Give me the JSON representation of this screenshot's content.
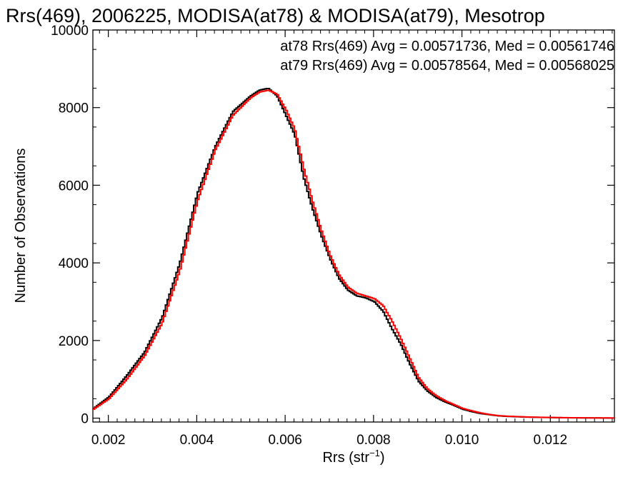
{
  "chart_data": {
    "type": "line",
    "title": "Rrs(469), 2006225, MODISA(at78) & MODISA(at79), Mesotrop",
    "xlabel": "Rrs (str",
    "xlabel_sup": "−1",
    "xlabel_close": ")",
    "ylabel": "Number of Observations",
    "xlim": [
      0.00165,
      0.01345
    ],
    "ylim": [
      -100,
      10000
    ],
    "xticks": [
      0.002,
      0.004,
      0.006,
      0.008,
      0.01,
      0.012
    ],
    "xtick_labels": [
      "0.002",
      "0.004",
      "0.006",
      "0.008",
      "0.010",
      "0.012"
    ],
    "yticks": [
      0,
      2000,
      4000,
      6000,
      8000,
      10000
    ],
    "ytick_labels": [
      "0",
      "2000",
      "4000",
      "6000",
      "8000",
      "10000"
    ],
    "grid": false,
    "legend_placement": "top-right",
    "series": [
      {
        "name": "at78",
        "color": "#000000",
        "legend": "at78 Rrs(469) Avg = 0.00571736, Med = 0.00561746",
        "x": [
          0.00165,
          0.002,
          0.0024,
          0.0028,
          0.0032,
          0.0036,
          0.004,
          0.0044,
          0.0048,
          0.0052,
          0.0054,
          0.0056,
          0.0058,
          0.006,
          0.0062,
          0.0064,
          0.0066,
          0.0068,
          0.007,
          0.0072,
          0.0074,
          0.0076,
          0.0078,
          0.008,
          0.0082,
          0.0084,
          0.0086,
          0.0088,
          0.009,
          0.0092,
          0.0094,
          0.0096,
          0.0098,
          0.01,
          0.0102,
          0.0104,
          0.0106,
          0.0108,
          0.011,
          0.0115,
          0.012,
          0.0125,
          0.013,
          0.01345
        ],
        "values": [
          250,
          550,
          1100,
          1700,
          2600,
          4000,
          5800,
          7000,
          7900,
          8300,
          8450,
          8500,
          8300,
          7800,
          7300,
          6200,
          5400,
          4700,
          4100,
          3600,
          3300,
          3150,
          3100,
          3000,
          2750,
          2300,
          1900,
          1400,
          950,
          700,
          530,
          420,
          330,
          230,
          170,
          120,
          90,
          60,
          45,
          25,
          15,
          8,
          5,
          3
        ]
      },
      {
        "name": "at79",
        "color": "#ff0000",
        "legend": "at79 Rrs(469) Avg = 0.00578564, Med = 0.00568025",
        "x": [
          0.00165,
          0.002,
          0.0024,
          0.0028,
          0.0032,
          0.0036,
          0.004,
          0.0044,
          0.0048,
          0.0052,
          0.0054,
          0.0056,
          0.0058,
          0.006,
          0.0062,
          0.0064,
          0.0066,
          0.0068,
          0.007,
          0.0072,
          0.0074,
          0.0076,
          0.0078,
          0.008,
          0.0082,
          0.0084,
          0.0086,
          0.0088,
          0.009,
          0.0092,
          0.0094,
          0.0096,
          0.0098,
          0.01,
          0.0102,
          0.0104,
          0.0106,
          0.0108,
          0.011,
          0.0115,
          0.012,
          0.0125,
          0.013,
          0.01345
        ],
        "values": [
          230,
          500,
          1000,
          1600,
          2450,
          3800,
          5600,
          6900,
          7800,
          8250,
          8400,
          8450,
          8350,
          7950,
          7450,
          6450,
          5600,
          4850,
          4200,
          3700,
          3380,
          3220,
          3150,
          3080,
          2900,
          2500,
          2050,
          1550,
          1050,
          760,
          580,
          450,
          350,
          250,
          190,
          135,
          95,
          65,
          50,
          28,
          17,
          10,
          6,
          4
        ]
      }
    ]
  }
}
